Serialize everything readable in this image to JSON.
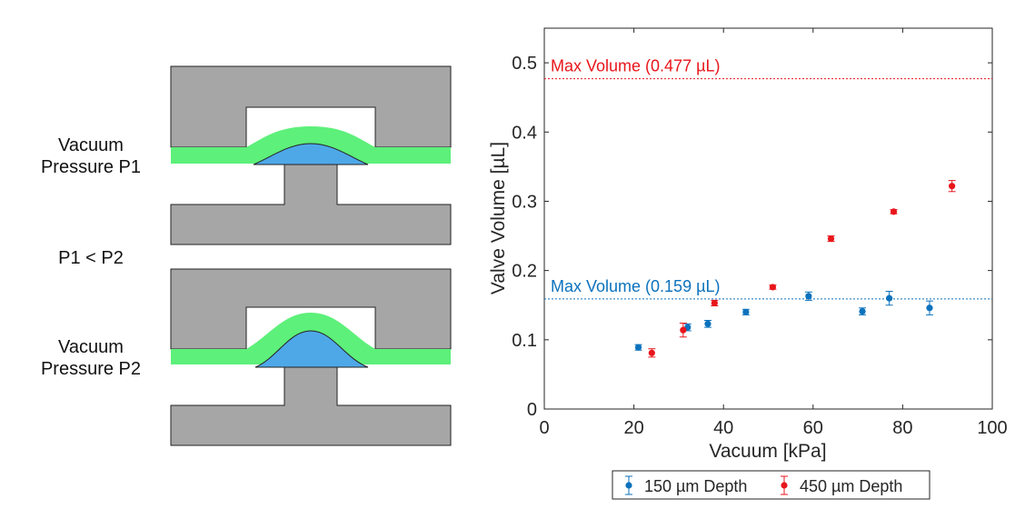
{
  "schematic": {
    "label_top_line1": "Vacuum",
    "label_top_line2": "Pressure P1",
    "label_mid": "P1 < P2",
    "label_bottom_line1": "Vacuum",
    "label_bottom_line2": "Pressure P2",
    "colors": {
      "body": "#a6a6a6",
      "membrane": "#5df07a",
      "fluid": "#4ea8e8",
      "outline": "#222222"
    }
  },
  "chart_data": {
    "type": "scatter",
    "title": "",
    "xlabel": "Vacuum [kPa]",
    "ylabel": "Valve Volume [µL]",
    "xlim": [
      0,
      100
    ],
    "ylim": [
      0,
      0.55
    ],
    "xticks": [
      0,
      20,
      40,
      60,
      80,
      100
    ],
    "yticks": [
      0,
      0.1,
      0.2,
      0.3,
      0.4,
      0.5
    ],
    "grid": false,
    "legend_position": "bottom-center",
    "series": [
      {
        "name": "150 µm Depth",
        "color": "#0c72bd",
        "x": [
          21,
          32,
          36.5,
          45,
          59,
          71,
          77,
          86
        ],
        "y": [
          0.089,
          0.118,
          0.123,
          0.14,
          0.163,
          0.141,
          0.16,
          0.146
        ],
        "err": [
          0.004,
          0.005,
          0.005,
          0.004,
          0.006,
          0.005,
          0.01,
          0.01
        ]
      },
      {
        "name": "450 µm Depth",
        "color": "#e8161b",
        "x": [
          24,
          31,
          38,
          51,
          64,
          78,
          91
        ],
        "y": [
          0.081,
          0.114,
          0.153,
          0.176,
          0.246,
          0.285,
          0.322
        ],
        "err": [
          0.006,
          0.01,
          0.004,
          0.003,
          0.004,
          0.003,
          0.008
        ]
      }
    ],
    "reference_lines": [
      {
        "label": "Max Volume (0.477 µL)",
        "y": 0.477,
        "color": "#e8161b"
      },
      {
        "label": "Max Volume (0.159 µL)",
        "y": 0.159,
        "color": "#0c72bd"
      }
    ]
  }
}
